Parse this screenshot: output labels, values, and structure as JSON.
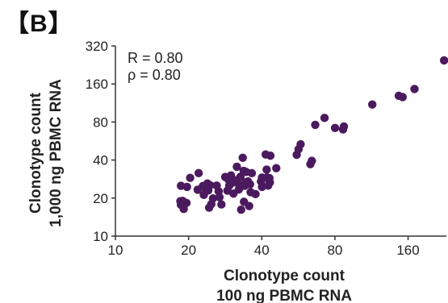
{
  "panel_label": "【B】",
  "chart_data": {
    "type": "scatter",
    "scale": "log2",
    "xlim": [
      10,
      230
    ],
    "ylim": [
      10,
      320
    ],
    "x_ticks": [
      10,
      20,
      40,
      80,
      160
    ],
    "y_ticks": [
      10,
      20,
      40,
      80,
      160,
      320
    ],
    "xlabel_lines": [
      "Clonotype count",
      "100 ng PBMC RNA"
    ],
    "ylabel_lines": [
      "Clonotype count",
      "1,000 ng PBMC RNA"
    ],
    "stats": [
      "R = 0.80",
      "ρ = 0.80"
    ],
    "point_color": "#4b1a5e",
    "points": [
      [
        18.5,
        18.9
      ],
      [
        18.6,
        17.7
      ],
      [
        18.9,
        19.0
      ],
      [
        19.1,
        16.4
      ],
      [
        19.6,
        18.3
      ],
      [
        18.6,
        25.0
      ],
      [
        19.7,
        24.5
      ],
      [
        20.3,
        28.9
      ],
      [
        22.0,
        31.5
      ],
      [
        21.8,
        23.3
      ],
      [
        22.9,
        24.9
      ],
      [
        23.1,
        21.2
      ],
      [
        23.6,
        22.9
      ],
      [
        24.1,
        23.0
      ],
      [
        24.5,
        25.3
      ],
      [
        23.9,
        26.1
      ],
      [
        24.3,
        16.8
      ],
      [
        24.8,
        17.9
      ],
      [
        25.2,
        19.9
      ],
      [
        26.1,
        25.1
      ],
      [
        26.6,
        22.6
      ],
      [
        26.8,
        20.3
      ],
      [
        27.3,
        17.8
      ],
      [
        28.3,
        29.4
      ],
      [
        29.2,
        28.0
      ],
      [
        29.4,
        25.1
      ],
      [
        29.9,
        30.2
      ],
      [
        28.9,
        22.9
      ],
      [
        30.6,
        21.7
      ],
      [
        30.7,
        26.6
      ],
      [
        31.5,
        27.6
      ],
      [
        32.7,
        29.5
      ],
      [
        32.3,
        25.7
      ],
      [
        32.2,
        23.4
      ],
      [
        31.6,
        35.4
      ],
      [
        33.4,
        41.7
      ],
      [
        33.7,
        32.8
      ],
      [
        34.5,
        32.2
      ],
      [
        34.0,
        25.0
      ],
      [
        34.4,
        26.6
      ],
      [
        35.1,
        27.1
      ],
      [
        35.8,
        25.7
      ],
      [
        36.0,
        22.3
      ],
      [
        33.8,
        18.7
      ],
      [
        35.5,
        17.3
      ],
      [
        32.9,
        16.2
      ],
      [
        36.4,
        31.5
      ],
      [
        37.7,
        21.5
      ],
      [
        39.7,
        27.1
      ],
      [
        40.1,
        24.5
      ],
      [
        40.1,
        29.1
      ],
      [
        41.5,
        44.3
      ],
      [
        41.9,
        33.6
      ],
      [
        42.0,
        29.1
      ],
      [
        43.0,
        28.8
      ],
      [
        43.4,
        43.3
      ],
      [
        43.2,
        26.6
      ],
      [
        42.5,
        25.1
      ],
      [
        45.9,
        34.5
      ],
      [
        55.7,
        44.0
      ],
      [
        56.7,
        48.7
      ],
      [
        57.8,
        53.3
      ],
      [
        64.3,
        39.4
      ],
      [
        63.4,
        37.1
      ],
      [
        66.4,
        76.0
      ],
      [
        72.5,
        86.2
      ],
      [
        80.1,
        71.8
      ],
      [
        87.1,
        73.8
      ],
      [
        86.4,
        69.9
      ],
      [
        114.0,
        110.0
      ],
      [
        146.5,
        129.0
      ],
      [
        152.0,
        126.0
      ],
      [
        170.0,
        146.0
      ],
      [
        225.0,
        246.0
      ]
    ]
  }
}
